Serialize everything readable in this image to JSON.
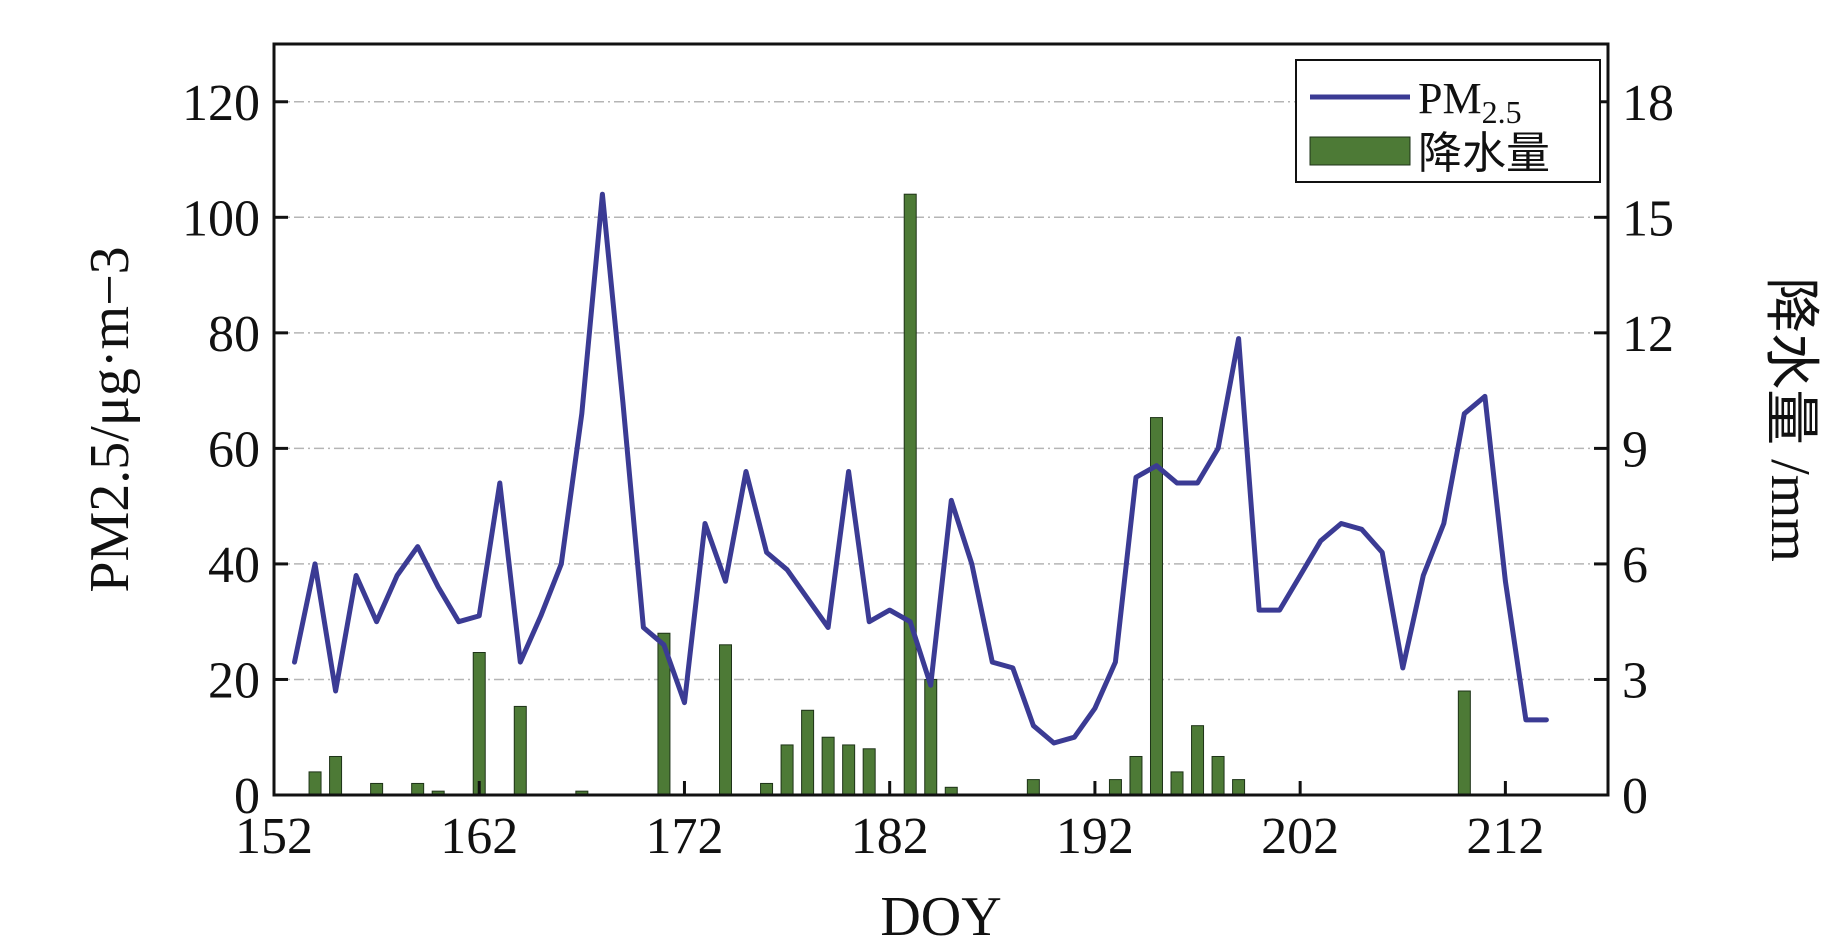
{
  "chart_data": {
    "type": "line+bar",
    "xlabel": "DOY",
    "ylabel_left": "PM2.5/μg·m−3",
    "ylabel_right": "降水量 /mm",
    "xlim": [
      152,
      217
    ],
    "ylim_left": [
      0,
      130
    ],
    "ylim_right": [
      0,
      19.5
    ],
    "x_ticks": [
      152,
      162,
      172,
      182,
      192,
      202,
      212
    ],
    "y_left_ticks": [
      0,
      20,
      40,
      60,
      80,
      100,
      120
    ],
    "y_right_ticks": [
      0,
      3,
      6,
      9,
      12,
      15,
      18
    ],
    "grid": "horizontal dash-dot",
    "legend_position": "top-right",
    "legend": [
      {
        "label": "PM",
        "sub": "2.5",
        "kind": "line"
      },
      {
        "label": "降水量",
        "kind": "bar"
      }
    ],
    "colors": {
      "line": "#3b3b94",
      "bar": "#4d7a36",
      "bar_edge": "#1e3318",
      "grid": "#b5b5b5"
    },
    "series": [
      {
        "name": "PM2.5",
        "axis": "left",
        "kind": "line",
        "x": [
          153,
          154,
          155,
          156,
          157,
          158,
          159,
          160,
          161,
          162,
          163,
          164,
          165,
          166,
          167,
          168,
          169,
          170,
          171,
          172,
          173,
          174,
          175,
          176,
          177,
          178,
          179,
          180,
          181,
          182,
          183,
          184,
          185,
          186,
          187,
          188,
          189,
          190,
          191,
          192,
          193,
          194,
          195,
          196,
          197,
          198,
          199,
          200,
          201,
          202,
          203,
          204,
          205,
          206,
          207,
          208,
          209,
          210,
          211,
          212,
          213,
          214
        ],
        "values": [
          23,
          40,
          18,
          38,
          30,
          38,
          43,
          36,
          30,
          31,
          54,
          23,
          31,
          40,
          66,
          104,
          68,
          29,
          26,
          16,
          47,
          37,
          56,
          42,
          39,
          34,
          29,
          56,
          30,
          32,
          30,
          19,
          51,
          40,
          23,
          22,
          12,
          9,
          10,
          15,
          23,
          55,
          57,
          54,
          54,
          60,
          79,
          32,
          32,
          38,
          44,
          47,
          46,
          42,
          22,
          38,
          47,
          66,
          69,
          37,
          13,
          13
        ]
      },
      {
        "name": "降水量",
        "axis": "right",
        "kind": "bar",
        "x": [
          154,
          155,
          157,
          159,
          160,
          162,
          164,
          167,
          171,
          174,
          176,
          177,
          178,
          179,
          180,
          181,
          183,
          184,
          185,
          189,
          193,
          194,
          195,
          196,
          197,
          198,
          199,
          210
        ],
        "values": [
          0.6,
          1.0,
          0.3,
          0.3,
          0.1,
          3.7,
          2.3,
          0.1,
          4.2,
          3.9,
          0.3,
          1.3,
          2.2,
          1.5,
          1.3,
          1.2,
          15.6,
          3.0,
          0.2,
          0.4,
          0.4,
          1.0,
          9.8,
          0.6,
          1.8,
          1.0,
          0.4,
          2.7
        ]
      }
    ]
  }
}
